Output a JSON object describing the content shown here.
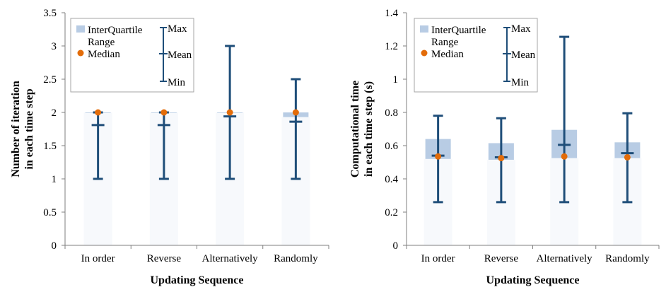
{
  "colors": {
    "iqr_box": "#b8cce4",
    "whisker": "#1f4e79",
    "median": "#e36c09",
    "axis": "#7f7f7f",
    "legend_border": "#a6a6a6"
  },
  "chart_data": [
    {
      "type": "boxplot",
      "title": "",
      "xlabel": "Updating Sequence",
      "ylabel": "Number of iteration in each time step",
      "ylabel_lines": [
        "Number of iteration",
        "in each time step"
      ],
      "ylim": [
        0,
        3.5
      ],
      "yticks": [
        0,
        0.5,
        1,
        1.5,
        2,
        2.5,
        3,
        3.5
      ],
      "ytick_labels": [
        "0",
        "0.5",
        "1",
        "1.5",
        "2",
        "2.5",
        "3",
        "3.5"
      ],
      "grid": false,
      "legend_position": "top-left",
      "legend": {
        "iqr_lines": [
          "InterQuartile",
          "Range"
        ],
        "median": "Median",
        "max": "Max",
        "mean": "Mean",
        "min": "Min"
      },
      "categories": [
        "In order",
        "Reverse",
        "Alternatively",
        "Randomly"
      ],
      "series": [
        {
          "min": 1,
          "q1": 2,
          "median": 2,
          "q3": 2,
          "max": 2,
          "mean": 1.81
        },
        {
          "min": 1,
          "q1": 2,
          "median": 2,
          "q3": 2,
          "max": 2,
          "mean": 1.81
        },
        {
          "min": 1,
          "q1": 2,
          "median": 2,
          "q3": 2,
          "max": 3,
          "mean": 1.94
        },
        {
          "min": 1,
          "q1": 1.93,
          "median": 2,
          "q3": 2,
          "max": 2.5,
          "mean": 1.86
        }
      ]
    },
    {
      "type": "boxplot",
      "title": "",
      "xlabel": "Updating Sequence",
      "ylabel": "Computational time in each time step (s)",
      "ylabel_lines": [
        "Computational time",
        "in each time step (s)"
      ],
      "ylim": [
        0,
        1.4
      ],
      "yticks": [
        0,
        0.2,
        0.4,
        0.6,
        0.8,
        1,
        1.2,
        1.4
      ],
      "ytick_labels": [
        "0",
        "0.2",
        "0.4",
        "0.6",
        "0.8",
        "1",
        "1.2",
        "1.4"
      ],
      "grid": false,
      "legend_position": "top-left",
      "legend": {
        "iqr_lines": [
          "InterQuartile",
          "Range"
        ],
        "median": "Median",
        "max": "Max",
        "mean": "Mean",
        "min": "Min"
      },
      "categories": [
        "In order",
        "Reverse",
        "Alternatively",
        "Randomly"
      ],
      "series": [
        {
          "min": 0.26,
          "q1": 0.52,
          "median": 0.535,
          "q3": 0.64,
          "max": 0.78,
          "mean": 0.54
        },
        {
          "min": 0.26,
          "q1": 0.515,
          "median": 0.525,
          "q3": 0.615,
          "max": 0.765,
          "mean": 0.53
        },
        {
          "min": 0.26,
          "q1": 0.525,
          "median": 0.535,
          "q3": 0.695,
          "max": 1.255,
          "mean": 0.605
        },
        {
          "min": 0.26,
          "q1": 0.525,
          "median": 0.53,
          "q3": 0.62,
          "max": 0.795,
          "mean": 0.555
        }
      ]
    }
  ]
}
